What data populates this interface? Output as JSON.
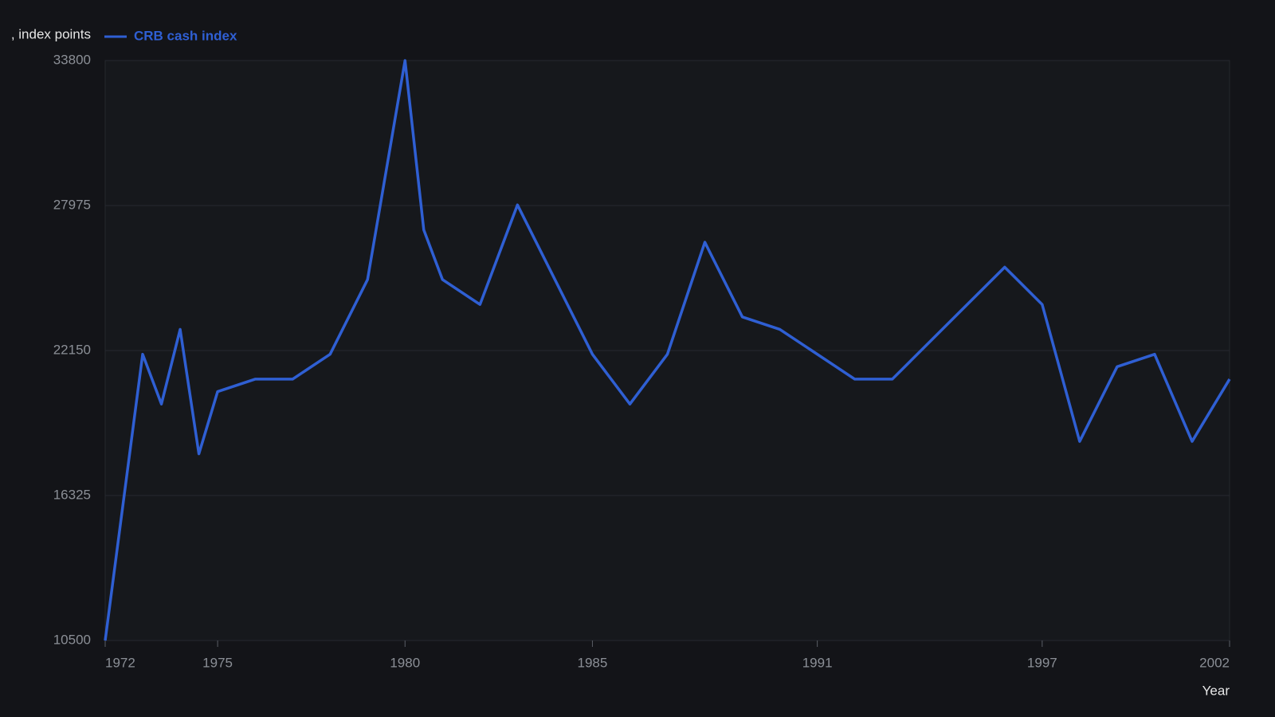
{
  "chart_data": {
    "type": "line",
    "y_label": ", index points",
    "x_label": "Year",
    "x": [
      1972,
      1973,
      1973.5,
      1974,
      1974.5,
      1975,
      1976,
      1977,
      1978,
      1979,
      1980,
      1980.5,
      1981,
      1982,
      1983,
      1985,
      1986,
      1987,
      1988,
      1989,
      1990,
      1992,
      1993,
      1996,
      1997,
      1998,
      1999,
      2000,
      2001,
      2002
    ],
    "series": [
      {
        "name": "CRB cash index",
        "color": "#2f5fd3",
        "values": [
          10500,
          22000,
          20000,
          23000,
          18000,
          20500,
          21000,
          21000,
          22000,
          25000,
          33800,
          27000,
          25000,
          24000,
          28000,
          22000,
          20000,
          22000,
          26500,
          23500,
          23000,
          21000,
          21000,
          25500,
          24000,
          18500,
          21500,
          22000,
          18500,
          21000
        ]
      }
    ],
    "xlim": [
      1972,
      2002
    ],
    "xticks": [
      1972,
      1975,
      1980,
      1985,
      1991,
      1997,
      2002
    ],
    "ylim": [
      10500,
      33800
    ],
    "yticks": [
      10500,
      16325,
      22150,
      27975,
      33800
    ],
    "grid": true
  }
}
